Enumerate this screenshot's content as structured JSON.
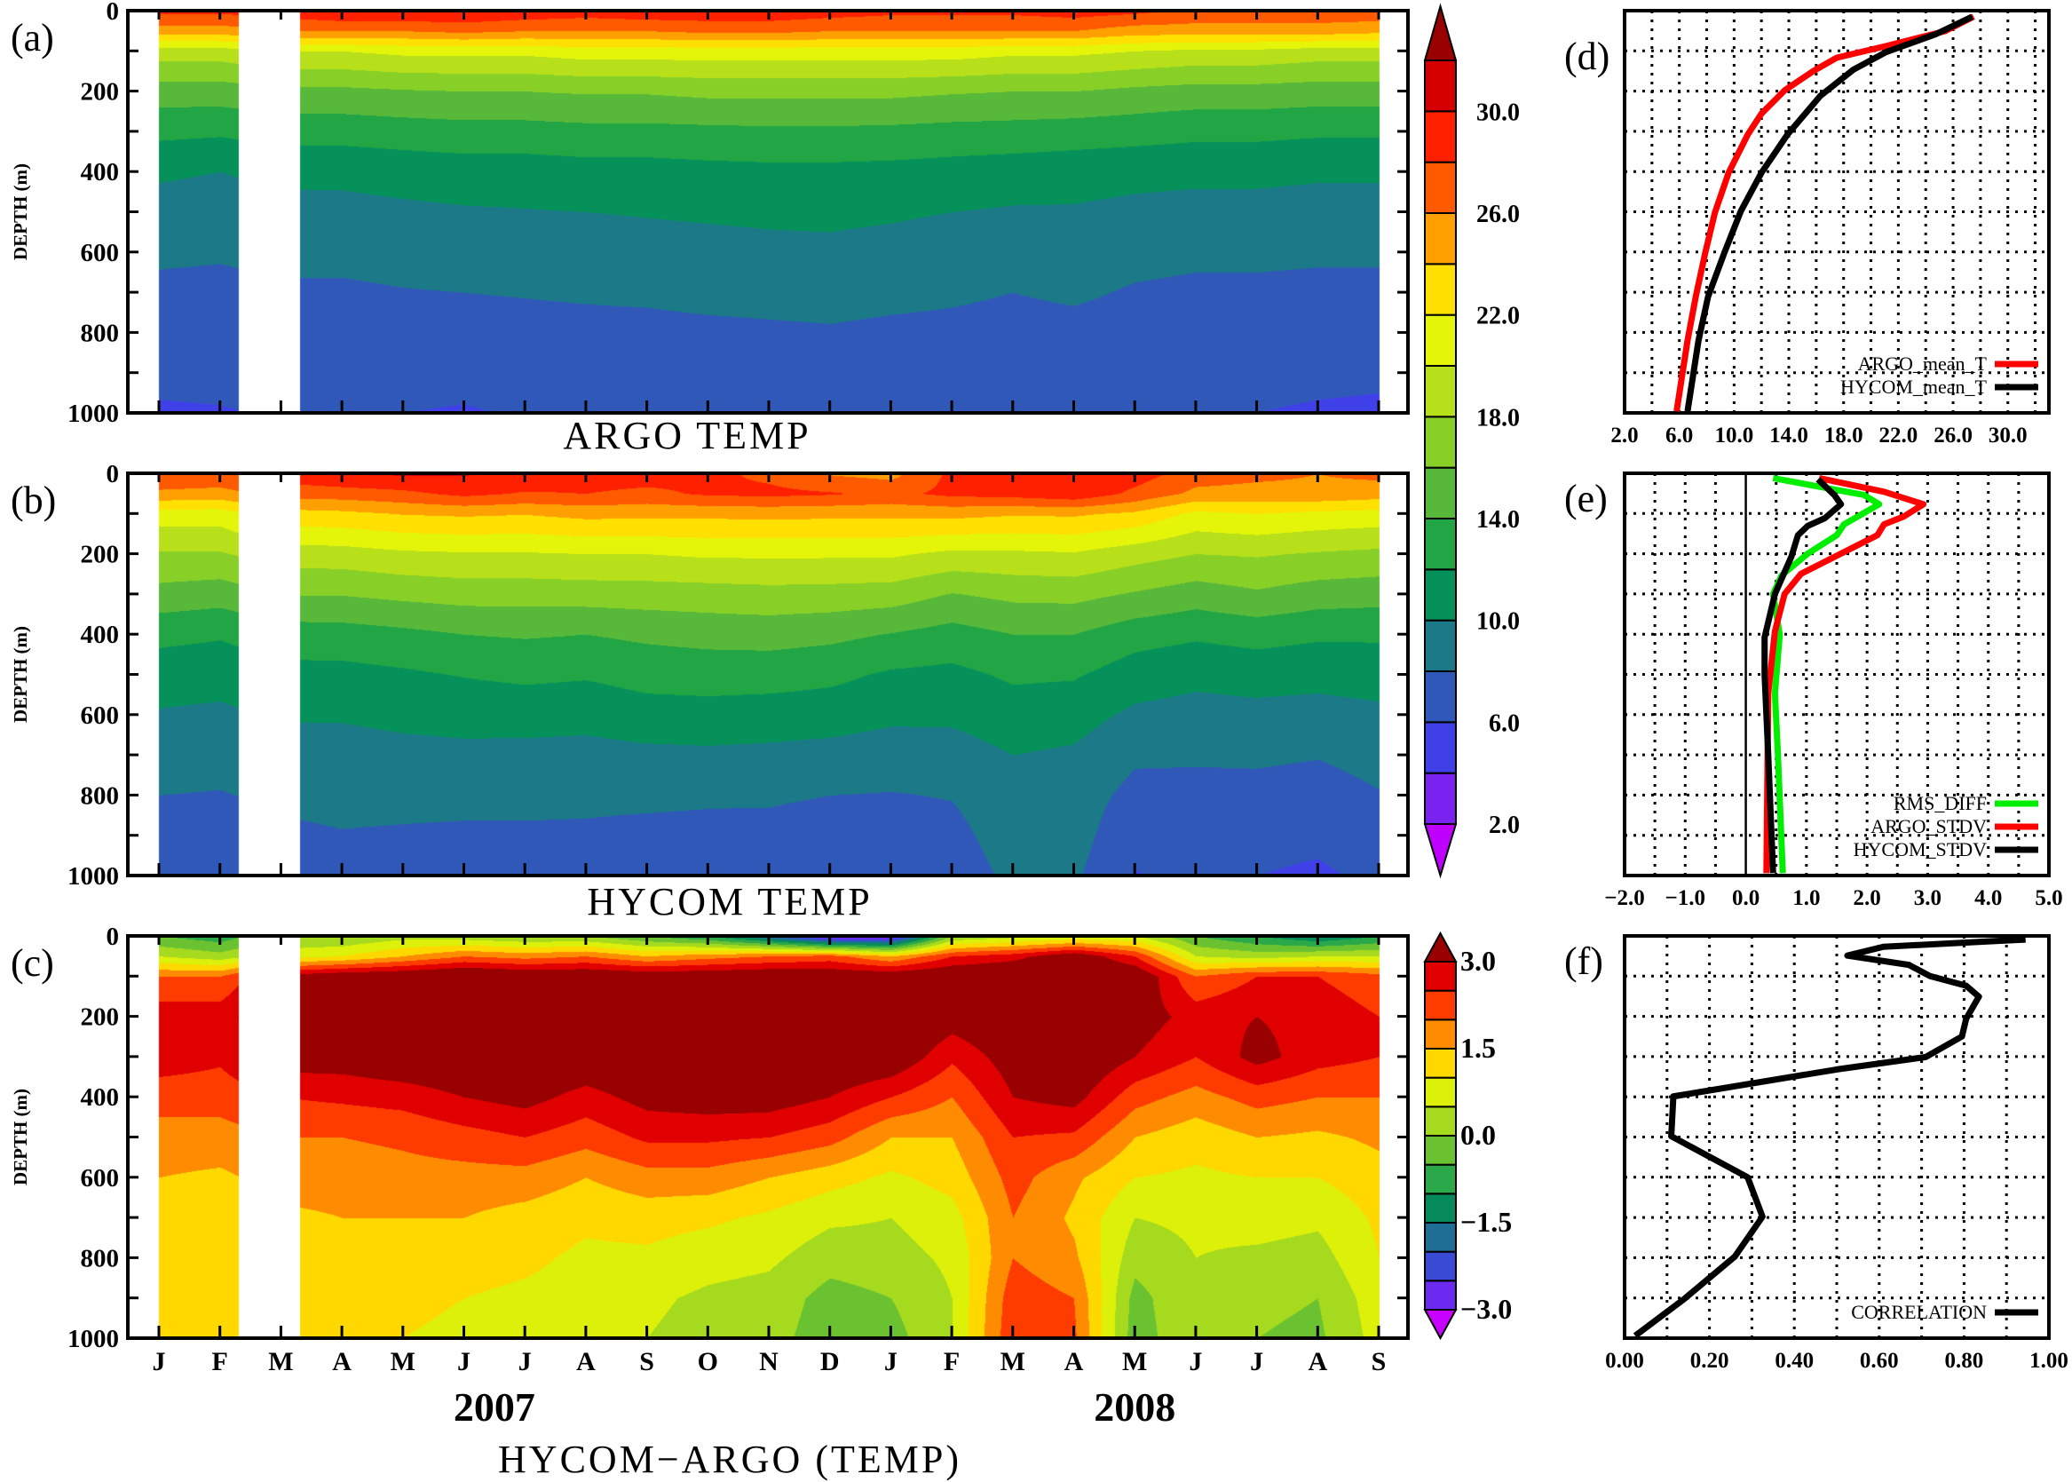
{
  "chart_data": [
    {
      "panel": "(a)",
      "type": "heatmap",
      "title": "ARGO TEMP",
      "ylabel": "DEPTH (m)",
      "y_ticks": [
        0,
        200,
        400,
        600,
        800,
        1000
      ],
      "ylim": [
        1000,
        0
      ],
      "months": [
        "2007-01",
        "2007-02",
        "2007-03",
        "2007-04",
        "2007-05",
        "2007-06",
        "2007-07",
        "2007-08",
        "2007-09",
        "2007-10",
        "2007-11",
        "2007-12",
        "2008-01",
        "2008-02",
        "2008-03",
        "2008-04",
        "2008-05",
        "2008-06",
        "2008-07",
        "2008-08",
        "2008-09"
      ],
      "missing": [
        "2007-02-24",
        "2007-03-24"
      ],
      "depths": [
        0,
        50,
        100,
        200,
        300,
        400,
        500,
        600,
        700,
        800,
        900,
        1000
      ],
      "values": [
        [
          28.5,
          25,
          19,
          15,
          12.5,
          10.3,
          9.2,
          8.3,
          7.6,
          7.0,
          6.4,
          5.8
        ],
        [
          28.5,
          25,
          19,
          15,
          12.3,
          10.0,
          9.0,
          8.2,
          7.5,
          6.9,
          6.4,
          5.9
        ],
        [
          29,
          26,
          20,
          15.5,
          12.8,
          10.5,
          9.4,
          8.5,
          7.7,
          7.1,
          6.6,
          6.1
        ],
        [
          30,
          26,
          20,
          15.5,
          12.8,
          10.5,
          9.4,
          8.5,
          7.7,
          7.1,
          6.6,
          6.1
        ],
        [
          30,
          26,
          20.5,
          15.8,
          13,
          10.8,
          9.6,
          8.7,
          7.9,
          7.2,
          6.7,
          6.0
        ],
        [
          30,
          26.5,
          20.5,
          16,
          13.2,
          11,
          9.8,
          8.9,
          8.0,
          7.3,
          6.7,
          5.8
        ],
        [
          29.5,
          26,
          20.5,
          16,
          13.2,
          11,
          9.9,
          9.0,
          8.1,
          7.4,
          6.8,
          6.2
        ],
        [
          29,
          26,
          21,
          16.2,
          13.4,
          11.2,
          10,
          9.2,
          8.2,
          7.5,
          6.9,
          6.3
        ],
        [
          29.5,
          26,
          21,
          16.2,
          13.4,
          11.2,
          10.1,
          9.4,
          8.3,
          7.5,
          6.9,
          6.3
        ],
        [
          29.5,
          26.5,
          21,
          16.5,
          13.5,
          11.4,
          10.2,
          9.5,
          8.5,
          7.6,
          7.0,
          6.4
        ],
        [
          29.5,
          26.5,
          21,
          16.5,
          13.6,
          11.5,
          10.3,
          9.6,
          8.6,
          7.7,
          7.0,
          6.4
        ],
        [
          29,
          26,
          21,
          16.5,
          13.6,
          11.5,
          10.3,
          9.7,
          8.7,
          7.8,
          7.1,
          6.5
        ],
        [
          28.5,
          26,
          21,
          16.5,
          13.5,
          11.4,
          10.2,
          9.5,
          8.5,
          7.6,
          7.0,
          6.4
        ],
        [
          28.5,
          26,
          21,
          16.2,
          13.3,
          11.2,
          10.0,
          9.2,
          8.3,
          7.5,
          6.9,
          6.3
        ],
        [
          28.5,
          26,
          20.5,
          16,
          13.2,
          11,
          9.8,
          8.9,
          8.0,
          7.3,
          6.7,
          6.1
        ],
        [
          29,
          26,
          20.5,
          16,
          13,
          10.8,
          9.8,
          9.2,
          8.3,
          7.4,
          6.8,
          6.2
        ],
        [
          28.5,
          25,
          20,
          15.5,
          12.8,
          10.6,
          9.5,
          8.6,
          7.8,
          7.2,
          6.7,
          6.2
        ],
        [
          27.5,
          25,
          19.5,
          15.2,
          12.5,
          10.5,
          9.3,
          8.4,
          7.6,
          7.0,
          6.5,
          6.0
        ],
        [
          27.5,
          25,
          19.5,
          15.2,
          12.5,
          10.5,
          9.3,
          8.4,
          7.6,
          7.0,
          6.5,
          6.0
        ],
        [
          27.5,
          25,
          19,
          15,
          12.3,
          10.3,
          9.2,
          8.3,
          7.5,
          6.9,
          6.4,
          5.8
        ],
        [
          27.5,
          24.5,
          19,
          15,
          12.3,
          10.3,
          9.2,
          8.3,
          7.5,
          6.9,
          6.3,
          5.7
        ]
      ],
      "colorbar": {
        "levels": [
          2,
          4,
          6,
          8,
          10,
          12,
          14,
          16,
          18,
          20,
          22,
          24,
          26,
          28,
          30,
          32
        ],
        "colors": [
          "#C000FF",
          "#7A22F0",
          "#4040E8",
          "#3058B8",
          "#1C7A88",
          "#06915A",
          "#22A545",
          "#58B83A",
          "#88D028",
          "#B8E01A",
          "#E5F50A",
          "#FFE000",
          "#FFA000",
          "#FF5A00",
          "#FF2000",
          "#D40000",
          "#990000"
        ],
        "tick_values": [
          30,
          26,
          22,
          18,
          14,
          10,
          6,
          2
        ],
        "tick_labels": [
          "30.0",
          "26.0",
          "22.0",
          "18.0",
          "14.0",
          "10.0",
          "6.0",
          "2.0"
        ]
      }
    },
    {
      "panel": "(b)",
      "type": "heatmap",
      "title": "HYCOM TEMP",
      "ylabel": "DEPTH (m)",
      "y_ticks": [
        0,
        200,
        400,
        600,
        800,
        1000
      ],
      "ylim": [
        1000,
        0
      ],
      "colorbar": "shared with (a)"
    },
    {
      "panel": "(c)",
      "type": "heatmap",
      "title": "HYCOM−ARGO (TEMP)",
      "ylabel": "DEPTH (m)",
      "y_ticks": [
        0,
        200,
        400,
        600,
        800,
        1000
      ],
      "ylim": [
        1000,
        0
      ],
      "x_tick_labels": [
        "J",
        "F",
        "M",
        "A",
        "M",
        "J",
        "J",
        "A",
        "S",
        "O",
        "N",
        "D",
        "J",
        "F",
        "M",
        "A",
        "M",
        "J",
        "J",
        "A",
        "S"
      ],
      "year_labels": [
        "2007",
        "2008"
      ],
      "values": [
        [
          -0.5,
          0.5,
          2.0,
          2.8,
          2.8,
          2.2,
          1.8,
          1.5,
          1.2,
          1.0,
          1.0,
          1.0
        ],
        [
          -0.8,
          0.2,
          2.0,
          2.8,
          2.6,
          2.2,
          1.8,
          1.4,
          1.1,
          1.0,
          1.0,
          1.0
        ],
        [
          0,
          0.8,
          3.2,
          3.5,
          3.3,
          2.5,
          2.0,
          1.7,
          1.4,
          1.2,
          1.1,
          1.0
        ],
        [
          0,
          1.0,
          3.5,
          3.6,
          3.3,
          2.6,
          2.0,
          1.7,
          1.5,
          1.4,
          1.3,
          1.2
        ],
        [
          0.3,
          1.5,
          3.6,
          3.8,
          3.5,
          2.7,
          2.1,
          1.8,
          1.5,
          1.3,
          1.1,
          1.0
        ],
        [
          0.2,
          2.0,
          3.8,
          3.8,
          3.6,
          3.0,
          2.3,
          1.8,
          1.5,
          1.2,
          1.0,
          0.9
        ],
        [
          0,
          1.8,
          3.6,
          3.8,
          3.6,
          3.2,
          2.5,
          1.8,
          1.3,
          1.1,
          0.9,
          0.8
        ],
        [
          0,
          2.0,
          3.6,
          3.8,
          3.5,
          2.8,
          2.2,
          1.5,
          1.1,
          0.9,
          0.8,
          0.7
        ],
        [
          -0.5,
          1.5,
          3.5,
          3.8,
          3.6,
          3.2,
          2.6,
          1.8,
          1.2,
          0.9,
          0.6,
          0.5
        ],
        [
          -1,
          1.8,
          3.5,
          3.8,
          3.6,
          3.3,
          2.6,
          1.8,
          1.1,
          0.7,
          0.4,
          0.3
        ],
        [
          -2,
          2.0,
          3.6,
          3.8,
          3.7,
          3.3,
          2.5,
          1.5,
          0.9,
          0.6,
          0.3,
          0.2
        ],
        [
          -3.2,
          2.2,
          3.5,
          3.8,
          3.6,
          3.0,
          2.2,
          1.2,
          0.6,
          0.2,
          -0.2,
          -0.3
        ],
        [
          -3.2,
          1.5,
          3.5,
          3.8,
          3.5,
          2.5,
          1.5,
          0.9,
          0.5,
          0.3,
          0.0,
          -0.2
        ],
        [
          0,
          2.5,
          3.6,
          3.3,
          2.6,
          2.0,
          1.5,
          1.2,
          0.8,
          0.6,
          0.5,
          0.5
        ],
        [
          0.3,
          2.8,
          3.7,
          3.6,
          3.3,
          3.0,
          2.5,
          2.2,
          2.0,
          2.0,
          2.3,
          2.4
        ],
        [
          0.5,
          3.5,
          3.8,
          3.8,
          3.6,
          3.2,
          2.4,
          1.6,
          1.4,
          1.6,
          2.0,
          2.1
        ],
        [
          0.5,
          2.5,
          3.6,
          3.3,
          3.0,
          2.2,
          1.5,
          1.0,
          0.5,
          0.2,
          -0.2,
          -0.3
        ],
        [
          -0.5,
          0.5,
          2.0,
          2.8,
          2.5,
          1.8,
          1.2,
          0.9,
          0.6,
          0.5,
          0.5,
          0.5
        ],
        [
          -1.0,
          0.3,
          2.5,
          3.0,
          3.2,
          2.2,
          1.5,
          1.0,
          0.7,
          0.4,
          0.1,
          0.0
        ],
        [
          -1.5,
          0.5,
          2.5,
          2.8,
          2.7,
          2.0,
          1.4,
          1.0,
          0.6,
          0.3,
          0.0,
          -0.1
        ],
        [
          -1.0,
          0.5,
          2.2,
          2.5,
          2.5,
          2.0,
          1.6,
          1.3,
          1.1,
          1.0,
          0.8,
          0.7
        ]
      ],
      "colorbar": {
        "levels": [
          -3,
          -2.5,
          -2,
          -1.5,
          -1,
          -0.5,
          0,
          0.5,
          1,
          1.5,
          2,
          2.5,
          3
        ],
        "colors": [
          "#C800FF",
          "#6A2AF0",
          "#3A4AD4",
          "#1E6E96",
          "#078A5A",
          "#2AA84A",
          "#6AC230",
          "#A6DA1E",
          "#DDF00A",
          "#FFD800",
          "#FF8C00",
          "#FF3C00",
          "#E00000",
          "#990000"
        ],
        "tick_values": [
          3,
          1.5,
          0,
          -1.5,
          -3
        ],
        "tick_labels": [
          "3.0",
          "1.5",
          "0.0",
          "−1.5",
          "−3.0"
        ]
      }
    },
    {
      "panel": "(d)",
      "type": "line",
      "xlim": [
        2,
        33
      ],
      "ylim": [
        1000,
        0
      ],
      "grid": true,
      "legend": "bottom-right",
      "x_ticks": [
        2,
        6,
        10,
        14,
        18,
        22,
        26,
        30
      ],
      "x_tick_labels": [
        "2.0",
        "6.0",
        "10.0",
        "14.0",
        "18.0",
        "22.0",
        "26.0",
        "30.0"
      ],
      "x_grid_step": 2,
      "y_grid_step": 100,
      "series": [
        {
          "name": "ARGO_mean_T",
          "color": "#FF0000",
          "points": [
            [
              27.5,
              15
            ],
            [
              25.4,
              51
            ],
            [
              21.1,
              88
            ],
            [
              17.5,
              117
            ],
            [
              15.8,
              150
            ],
            [
              13.7,
              198
            ],
            [
              12,
              256
            ],
            [
              11,
              308
            ],
            [
              9.6,
              403
            ],
            [
              8.6,
              502
            ],
            [
              7.9,
              601
            ],
            [
              7.2,
              711
            ],
            [
              6.6,
              820
            ],
            [
              5.8,
              996
            ]
          ]
        },
        {
          "name": "HYCOM_mean_T",
          "color": "#000000",
          "points": [
            [
              27.4,
              15
            ],
            [
              24.7,
              59
            ],
            [
              21.1,
              103
            ],
            [
              18.7,
              147
            ],
            [
              16.3,
              212
            ],
            [
              13.9,
              308
            ],
            [
              12,
              403
            ],
            [
              10.5,
              498
            ],
            [
              9.3,
              601
            ],
            [
              8.1,
              711
            ],
            [
              7.4,
              820
            ],
            [
              6.6,
              996
            ]
          ]
        }
      ]
    },
    {
      "panel": "(e)",
      "type": "line",
      "xlim": [
        -2,
        5
      ],
      "ylim": [
        1000,
        0
      ],
      "grid": true,
      "legend": "bottom-right",
      "x_ticks": [
        -2,
        -1,
        0,
        1,
        2,
        3,
        4,
        5
      ],
      "x_tick_labels": [
        "−2.0",
        "−1.0",
        "0.0",
        "1.0",
        "2.0",
        "3.0",
        "4.0",
        "5.0"
      ],
      "x_grid_step": 0.5,
      "y_grid_step": 100,
      "series": [
        {
          "name": "RMS_DIFF",
          "color": "#00EE00",
          "points": [
            [
              0.45,
              12
            ],
            [
              1.95,
              54
            ],
            [
              2.2,
              77
            ],
            [
              1.62,
              127
            ],
            [
              1.5,
              154
            ],
            [
              1.02,
              200
            ],
            [
              0.59,
              254
            ],
            [
              0.45,
              300
            ],
            [
              0.56,
              401
            ],
            [
              0.48,
              547
            ],
            [
              0.53,
              701
            ],
            [
              0.61,
              994
            ]
          ]
        },
        {
          "name": "ARGO_STDV",
          "color": "#FF0000",
          "points": [
            [
              1.21,
              12
            ],
            [
              2.28,
              46
            ],
            [
              2.93,
              77
            ],
            [
              2.6,
              108
            ],
            [
              2.28,
              127
            ],
            [
              2.17,
              154
            ],
            [
              1.46,
              208
            ],
            [
              0.91,
              250
            ],
            [
              0.64,
              300
            ],
            [
              0.48,
              393
            ],
            [
              0.37,
              547
            ],
            [
              0.34,
              994
            ]
          ]
        },
        {
          "name": "HYCOM_STDV",
          "color": "#000000",
          "points": [
            [
              1.19,
              15
            ],
            [
              1.46,
              54
            ],
            [
              1.57,
              77
            ],
            [
              1.3,
              112
            ],
            [
              1.02,
              131
            ],
            [
              0.86,
              154
            ],
            [
              0.75,
              208
            ],
            [
              0.48,
              300
            ],
            [
              0.31,
              408
            ],
            [
              0.31,
              501
            ],
            [
              0.37,
              701
            ],
            [
              0.45,
              994
            ]
          ]
        }
      ]
    },
    {
      "panel": "(f)",
      "type": "line",
      "xlim": [
        0,
        1
      ],
      "ylim": [
        1000,
        0
      ],
      "grid": true,
      "legend": "bottom-right",
      "x_ticks": [
        0,
        0.2,
        0.4,
        0.6,
        0.8,
        1.0
      ],
      "x_tick_labels": [
        "0.00",
        "0.20",
        "0.40",
        "0.60",
        "0.80",
        "1.00"
      ],
      "x_grid_step": 0.1,
      "y_grid_step": 100,
      "series": [
        {
          "name": "CORRELATION",
          "color": "#000000",
          "points": [
            [
              0.945,
              9
            ],
            [
              0.87,
              13
            ],
            [
              0.61,
              27
            ],
            [
              0.525,
              49
            ],
            [
              0.67,
              72
            ],
            [
              0.72,
              100
            ],
            [
              0.805,
              124
            ],
            [
              0.835,
              151
            ],
            [
              0.805,
              206
            ],
            [
              0.795,
              250
            ],
            [
              0.71,
              301
            ],
            [
              0.5,
              332
            ],
            [
              0.115,
              399
            ],
            [
              0.11,
              498
            ],
            [
              0.29,
              600
            ],
            [
              0.325,
              698
            ],
            [
              0.26,
              797
            ],
            [
              0.14,
              903
            ],
            [
              0.025,
              994
            ]
          ]
        }
      ]
    }
  ]
}
